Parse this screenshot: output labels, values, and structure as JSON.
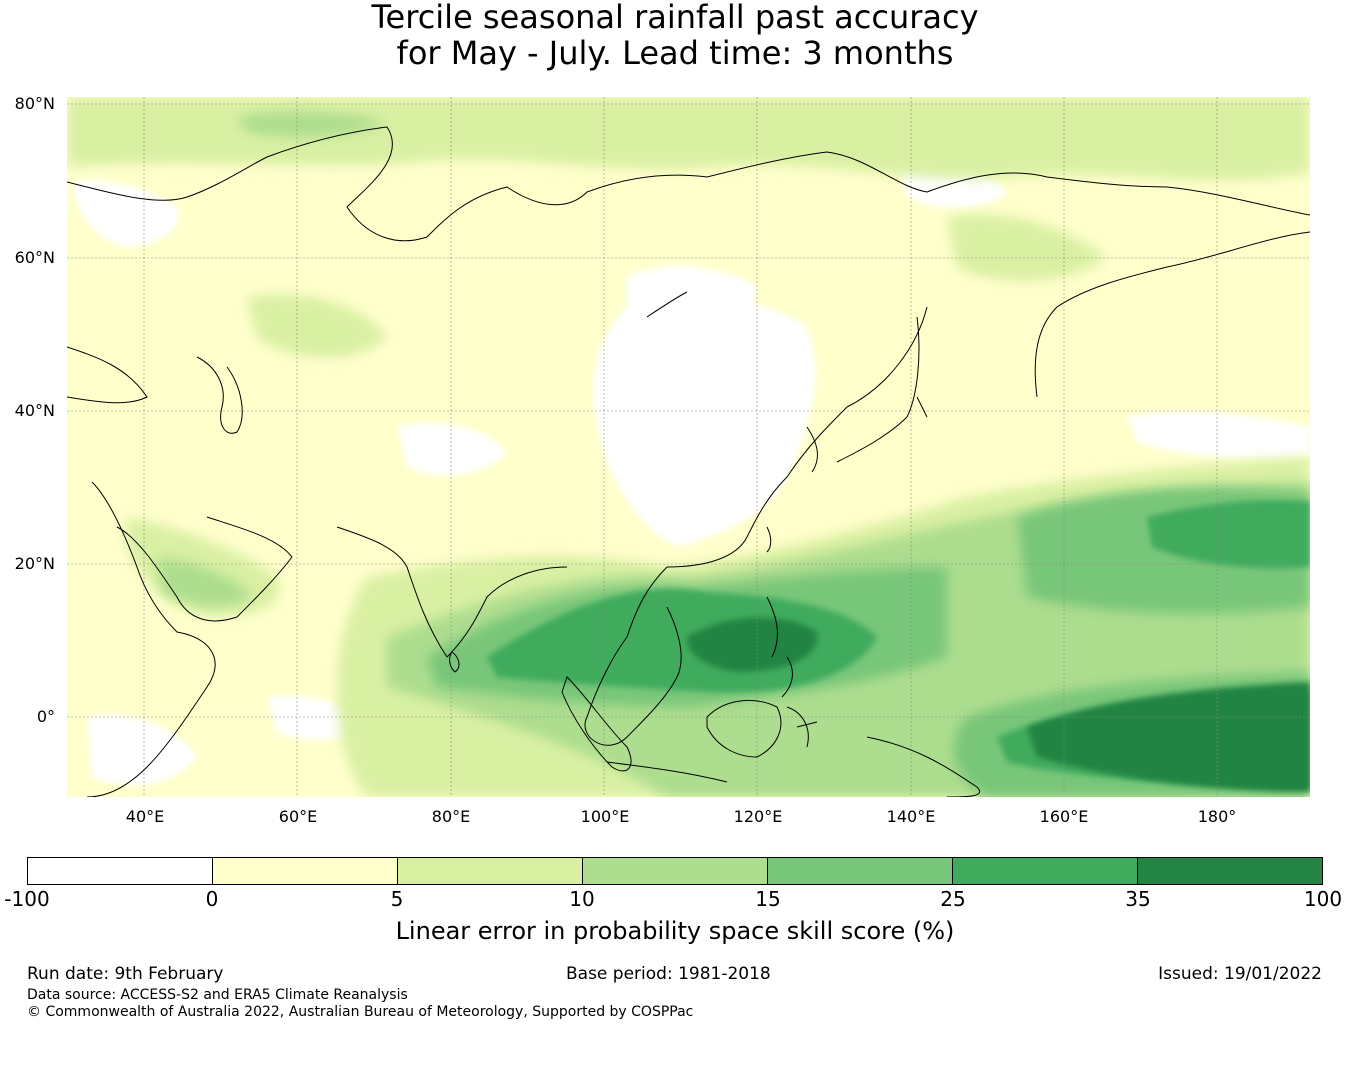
{
  "title": {
    "line1": "Tercile seasonal rainfall past accuracy",
    "line2": "for May - July. Lead time: 3 months"
  },
  "map": {
    "lat_labels": [
      "80°N",
      "60°N",
      "40°N",
      "20°N",
      "0°"
    ],
    "lon_labels": [
      "40°E",
      "60°E",
      "80°E",
      "100°E",
      "120°E",
      "140°E",
      "160°E",
      "180°"
    ],
    "extent": {
      "lon_min": 30,
      "lon_max": 192,
      "lat_min": -10.5,
      "lat_max": 81
    },
    "skill_regions": [
      {
        "name": "maritime-continent-core",
        "category": "35 to 100",
        "lon_range": [
          115,
          130
        ],
        "lat_range": [
          6,
          13
        ]
      },
      {
        "name": "western-pacific-equatorial",
        "category": "35 to 100",
        "lon_range": [
          150,
          192
        ],
        "lat_range": [
          -7,
          4
        ]
      },
      {
        "name": "bay-of-bengal-to-philippines",
        "category": "25 to 35",
        "lon_range": [
          88,
          135
        ],
        "lat_range": [
          5,
          19
        ]
      },
      {
        "name": "north-pacific-band",
        "category": "15 to 25",
        "lon_range": [
          150,
          192
        ],
        "lat_range": [
          13,
          27
        ]
      },
      {
        "name": "arabian-peninsula",
        "category": "5 to 10",
        "lon_range": [
          45,
          62
        ],
        "lat_range": [
          14,
          26
        ]
      },
      {
        "name": "arctic-coast",
        "category": "5 to 10",
        "lon_range": [
          30,
          192
        ],
        "lat_range": [
          72,
          81
        ]
      },
      {
        "name": "east-asia-dry",
        "category": "-100 to 0",
        "lon_range": [
          98,
          125
        ],
        "lat_range": [
          24,
          56
        ]
      }
    ]
  },
  "colorbar": {
    "ticks": [
      "-100",
      "0",
      "5",
      "10",
      "15",
      "25",
      "35",
      "100"
    ],
    "colors": [
      "#ffffff",
      "#ffffcc",
      "#d9f0a3",
      "#addd8e",
      "#78c679",
      "#41ab5d",
      "#238443"
    ],
    "label": "Linear error in probability space skill score (%)"
  },
  "footer": {
    "run_date": "Run date: 9th February",
    "base_period": "Base period: 1981-2018",
    "issued": "Issued: 19/01/2022",
    "data_source": "Data source: ACCESS-S2 and ERA5 Climate Reanalysis",
    "copyright": "© Commonwealth of Australia 2022, Australian Bureau of Meteorology, Supported by COSPPac"
  }
}
